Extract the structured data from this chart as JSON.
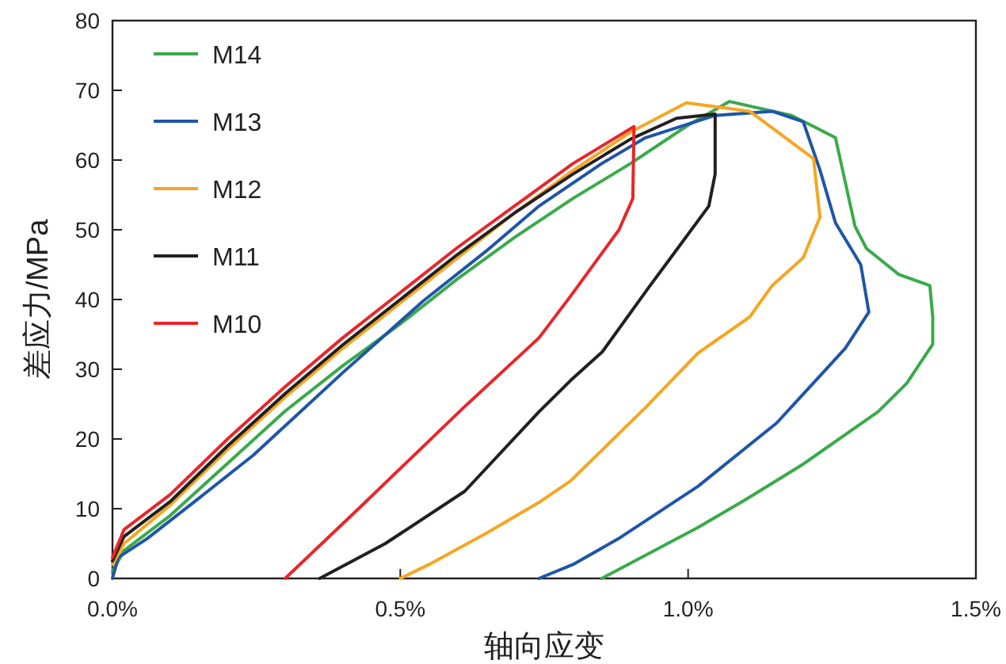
{
  "chart_data": {
    "type": "line",
    "xlabel": "轴向应变",
    "ylabel": "差应力/MPa",
    "xlim": [
      0,
      1.5
    ],
    "ylim": [
      0,
      80
    ],
    "xticks": [
      {
        "value": 0,
        "label": "0.0%"
      },
      {
        "value": 0.5,
        "label": "0.5%"
      },
      {
        "value": 1.0,
        "label": "1.0%"
      },
      {
        "value": 1.5,
        "label": "1.5%"
      }
    ],
    "yticks": [
      0,
      10,
      20,
      30,
      40,
      50,
      60,
      70,
      80
    ],
    "legend": "top left",
    "series": [
      {
        "name": "M14",
        "color": "#3aaa4a",
        "x": [
          0,
          0.02,
          0.1,
          0.2,
          0.3,
          0.4,
          0.5,
          0.6,
          0.7,
          0.8,
          0.9,
          1.0,
          1.072,
          1.18,
          1.256,
          1.29,
          1.31,
          1.366,
          1.42,
          1.425,
          1.425,
          1.38,
          1.33,
          1.2,
          1.1,
          1.017,
          0.93,
          0.85
        ],
        "values": [
          1,
          4,
          9,
          16.5,
          24,
          30.5,
          36.5,
          43,
          49,
          54.5,
          59.5,
          65,
          68.4,
          66.4,
          63.2,
          50.5,
          47.3,
          43.6,
          42,
          37.5,
          33.6,
          28,
          23.9,
          16.4,
          11.3,
          7.3,
          3.5,
          0
        ]
      },
      {
        "name": "M13",
        "color": "#1f55a8",
        "x": [
          0,
          0.01,
          0.06,
          0.15,
          0.245,
          0.4,
          0.54,
          0.65,
          0.741,
          0.85,
          0.926,
          1.047,
          1.146,
          1.2,
          1.229,
          1.256,
          1.3,
          1.314,
          1.273,
          1.154,
          1.017,
          0.879,
          0.8,
          0.741
        ],
        "values": [
          0,
          3,
          5.7,
          11.5,
          17.7,
          29.5,
          39.8,
          47,
          53.4,
          59.5,
          63.2,
          66.4,
          67,
          65.5,
          58.6,
          51,
          45,
          38.2,
          33,
          22.3,
          13.2,
          5.7,
          2,
          0
        ]
      },
      {
        "name": "M12",
        "color": "#f5a623",
        "x": [
          0,
          0.02,
          0.1,
          0.2,
          0.3,
          0.4,
          0.5,
          0.6,
          0.7,
          0.8,
          0.9,
          0.997,
          1.107,
          1.218,
          1.229,
          1.2,
          1.146,
          1.107,
          1.017,
          0.926,
          0.796,
          0.741,
          0.65,
          0.55,
          0.5
        ],
        "values": [
          2,
          5,
          10.5,
          18.5,
          26,
          33,
          39.5,
          46,
          52.5,
          58.5,
          64,
          68.2,
          67,
          60.2,
          51.8,
          46,
          42,
          37.5,
          32.3,
          24.5,
          14,
          10.9,
          6.5,
          2,
          0
        ]
      },
      {
        "name": "M11",
        "color": "#231f20",
        "x": [
          0,
          0.02,
          0.1,
          0.2,
          0.3,
          0.4,
          0.5,
          0.6,
          0.7,
          0.8,
          0.9,
          0.98,
          1.047,
          1.047,
          1.036,
          0.961,
          0.934,
          0.851,
          0.796,
          0.741,
          0.612,
          0.474,
          0.36
        ],
        "values": [
          2.5,
          6,
          11,
          19,
          26.5,
          33.5,
          40,
          46.5,
          52.5,
          58,
          63,
          66,
          66.6,
          58,
          53.4,
          45,
          42,
          32.5,
          28.4,
          23.9,
          12.5,
          5,
          0
        ]
      },
      {
        "name": "M10",
        "color": "#e8262a",
        "x": [
          0,
          0.02,
          0.1,
          0.2,
          0.3,
          0.4,
          0.5,
          0.6,
          0.7,
          0.8,
          0.906,
          0.904,
          0.88,
          0.796,
          0.741,
          0.61,
          0.43,
          0.3
        ],
        "values": [
          3,
          7,
          12,
          20,
          27.5,
          34.5,
          41,
          47.5,
          53.5,
          59.5,
          64.8,
          54.5,
          50,
          40.5,
          34.5,
          24.5,
          10.2,
          0
        ]
      }
    ]
  }
}
